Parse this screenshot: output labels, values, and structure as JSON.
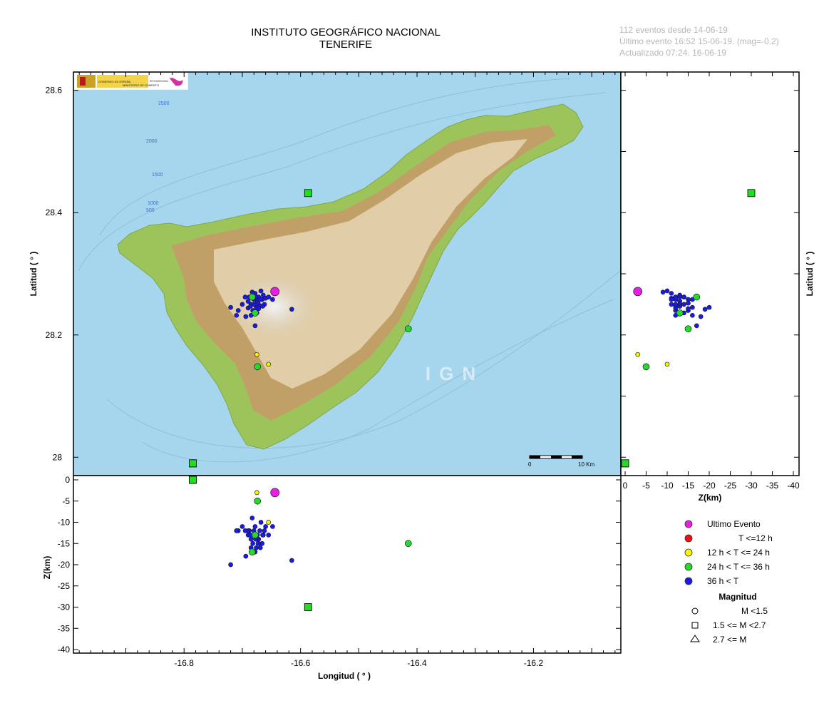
{
  "header": {
    "title_line1": "INSTITUTO GEOGRÁFICO NACIONAL",
    "title_line2": "TENERIFE"
  },
  "info": {
    "line1": "112 eventos desde 14-06-19",
    "line2": "Último evento 16:52 15-06-19. (mag=-0.2)",
    "line3": "Actualizado   07:24. 16-06-19"
  },
  "map": {
    "watermark": "IGN",
    "logo_text1": "GOBIERNO DE ESPAÑA",
    "logo_text2": "MINISTERIO DE FOMENTO",
    "logo_text3": "INSTITUTO GEOGRÁFICO NACIONAL",
    "scale_start": "0",
    "scale_end": "10 Km",
    "depth_labels": [
      "2500",
      "2000",
      "1500",
      "1000",
      "500"
    ],
    "colors": {
      "sea": "#a6d6ee",
      "coast": "#9dc45a",
      "highland": "#c89a6a",
      "summit": "#f1f1f4"
    }
  },
  "axes": {
    "lat_label": "Latitud ( ° )",
    "lon_label": "Longitud ( ° )",
    "z_label": "Z(km)",
    "lat_ticks": [
      "28.6",
      "28.4",
      "28.2",
      "28"
    ],
    "lon_ticks": [
      "-16.8",
      "-16.6",
      "-16.4",
      "-16.2"
    ],
    "z_ticks": [
      "0",
      "-5",
      "-10",
      "-15",
      "-20",
      "-25",
      "-30",
      "-35",
      "-40"
    ]
  },
  "chart_data": {
    "type": "scatter",
    "xlim": [
      -16.99,
      -16.05
    ],
    "ylim": [
      27.97,
      28.63
    ],
    "zlim": [
      0,
      41
    ],
    "stations": [
      {
        "lon": -16.587,
        "lat": 28.432,
        "depth": -30
      },
      {
        "lon": -16.785,
        "lat": 27.99,
        "depth": 0
      },
      {
        "lon": -16.785,
        "lat": 27.99,
        "depth": 0
      }
    ],
    "latest_event": {
      "lon": -16.644,
      "lat": 28.271,
      "depth": -3
    },
    "events_12_24h": [
      {
        "lon": -16.675,
        "lat": 28.168,
        "depth": -3
      },
      {
        "lon": -16.655,
        "lat": 28.152,
        "depth": -10
      }
    ],
    "events_24_36h": [
      {
        "lon": -16.415,
        "lat": 28.21,
        "depth": -15
      },
      {
        "lon": -16.674,
        "lat": 28.148,
        "depth": -5
      },
      {
        "lon": -16.683,
        "lat": 28.262,
        "depth": -17
      },
      {
        "lon": -16.678,
        "lat": 28.236,
        "depth": -13
      }
    ],
    "events_36h": [
      {
        "lon": -16.72,
        "lat": 28.245,
        "depth": -20
      },
      {
        "lon": -16.707,
        "lat": 28.24,
        "depth": -12
      },
      {
        "lon": -16.7,
        "lat": 28.25,
        "depth": -11
      },
      {
        "lon": -16.694,
        "lat": 28.23,
        "depth": -18
      },
      {
        "lon": -16.69,
        "lat": 28.255,
        "depth": -13
      },
      {
        "lon": -16.688,
        "lat": 28.262,
        "depth": -12
      },
      {
        "lon": -16.685,
        "lat": 28.25,
        "depth": -14
      },
      {
        "lon": -16.682,
        "lat": 28.24,
        "depth": -15
      },
      {
        "lon": -16.68,
        "lat": 28.258,
        "depth": -12
      },
      {
        "lon": -16.678,
        "lat": 28.268,
        "depth": -11
      },
      {
        "lon": -16.676,
        "lat": 28.245,
        "depth": -16
      },
      {
        "lon": -16.674,
        "lat": 28.255,
        "depth": -13
      },
      {
        "lon": -16.672,
        "lat": 28.262,
        "depth": -14
      },
      {
        "lon": -16.67,
        "lat": 28.248,
        "depth": -12
      },
      {
        "lon": -16.668,
        "lat": 28.272,
        "depth": -10
      },
      {
        "lon": -16.666,
        "lat": 28.258,
        "depth": -15
      },
      {
        "lon": -16.664,
        "lat": 28.265,
        "depth": -13
      },
      {
        "lon": -16.662,
        "lat": 28.25,
        "depth": -12
      },
      {
        "lon": -16.66,
        "lat": 28.26,
        "depth": -11
      },
      {
        "lon": -16.685,
        "lat": 28.232,
        "depth": -16
      },
      {
        "lon": -16.69,
        "lat": 28.244,
        "depth": -12
      },
      {
        "lon": -16.675,
        "lat": 28.236,
        "depth": -14
      },
      {
        "lon": -16.68,
        "lat": 28.25,
        "depth": -13
      },
      {
        "lon": -16.672,
        "lat": 28.243,
        "depth": -15
      },
      {
        "lon": -16.665,
        "lat": 28.247,
        "depth": -13
      },
      {
        "lon": -16.683,
        "lat": 28.27,
        "depth": -9
      },
      {
        "lon": -16.695,
        "lat": 28.262,
        "depth": -12
      },
      {
        "lon": -16.678,
        "lat": 28.215,
        "depth": -17
      },
      {
        "lon": -16.655,
        "lat": 28.262,
        "depth": -13
      },
      {
        "lon": -16.648,
        "lat": 28.258,
        "depth": -11
      },
      {
        "lon": -16.615,
        "lat": 28.242,
        "depth": -19
      },
      {
        "lon": -16.71,
        "lat": 28.232,
        "depth": -12
      },
      {
        "lon": -16.673,
        "lat": 28.252,
        "depth": -15
      },
      {
        "lon": -16.669,
        "lat": 28.258,
        "depth": -16
      },
      {
        "lon": -16.677,
        "lat": 28.262,
        "depth": -14
      },
      {
        "lon": -16.686,
        "lat": 28.247,
        "depth": -13
      }
    ]
  },
  "legend": {
    "time_items": [
      {
        "label": "Ultimo Evento",
        "color": "#e81ee0"
      },
      {
        "label": "T <=12 h",
        "color": "#ee1111"
      },
      {
        "label": "12 h  < T <= 24 h",
        "color": "#f6f600"
      },
      {
        "label": "24 h  < T <= 36 h",
        "color": "#22dd22"
      },
      {
        "label": "36 h <  T",
        "color": "#1a1ae6"
      }
    ],
    "mag_title": "Magnitud",
    "mag_items": [
      {
        "label": "M <1.5",
        "icon": "circle-icon"
      },
      {
        "label": "1.5 <= M <2.7",
        "icon": "square-icon"
      },
      {
        "label": "2.7 <= M",
        "icon": "triangle-icon"
      }
    ]
  }
}
